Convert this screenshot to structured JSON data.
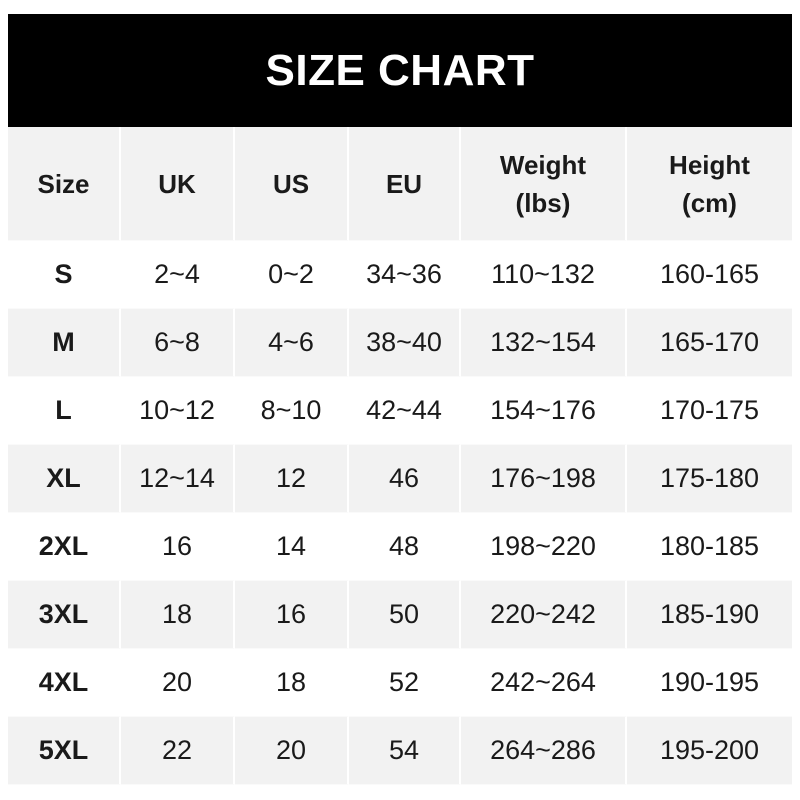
{
  "title": "SIZE CHART",
  "columns": [
    "Size",
    "UK",
    "US",
    "EU",
    "Weight\n(lbs)",
    "Height\n(cm)"
  ],
  "header": {
    "size": "Size",
    "uk": "UK",
    "us": "US",
    "eu": "EU",
    "weight_line1": "Weight",
    "weight_line2": "(lbs)",
    "height_line1": "Height",
    "height_line2": "(cm)"
  },
  "rows": [
    [
      "S",
      "2~4",
      "0~2",
      "34~36",
      "110~132",
      "160-165"
    ],
    [
      "M",
      "6~8",
      "4~6",
      "38~40",
      "132~154",
      "165-170"
    ],
    [
      "L",
      "10~12",
      "8~10",
      "42~44",
      "154~176",
      "170-175"
    ],
    [
      "XL",
      "12~14",
      "12",
      "46",
      "176~198",
      "175-180"
    ],
    [
      "2XL",
      "16",
      "14",
      "48",
      "198~220",
      "180-185"
    ],
    [
      "3XL",
      "18",
      "16",
      "50",
      "220~242",
      "185-190"
    ],
    [
      "4XL",
      "20",
      "18",
      "52",
      "242~264",
      "190-195"
    ],
    [
      "5XL",
      "22",
      "20",
      "54",
      "264~286",
      "195-200"
    ]
  ],
  "colors": {
    "title_bg": "#000000",
    "title_text": "#ffffff",
    "stripe": "#f2f2f2",
    "text": "#1a1a1a"
  }
}
